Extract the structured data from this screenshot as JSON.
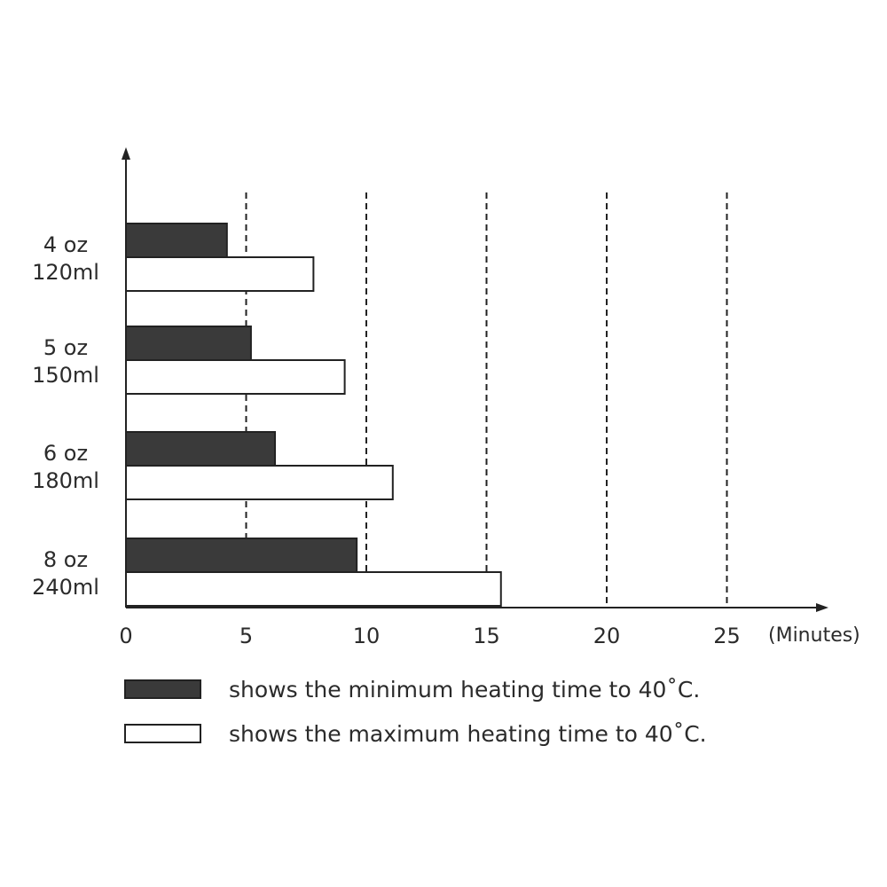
{
  "chart_data": {
    "type": "bar",
    "orientation": "horizontal",
    "categories": [
      [
        "4 oz",
        "120ml"
      ],
      [
        "5 oz",
        "150ml"
      ],
      [
        "6 oz",
        "180ml"
      ],
      [
        "8 oz",
        "240ml"
      ]
    ],
    "series": [
      {
        "name": "shows the minimum heating time to 40˚C.",
        "color": "#3a3a3a",
        "values": [
          4.2,
          5.2,
          6.2,
          9.6
        ]
      },
      {
        "name": "shows the maximum heating time to 40˚C.",
        "color": "#ffffff",
        "values": [
          7.8,
          9.1,
          11.1,
          15.6
        ]
      }
    ],
    "xticks": [
      0,
      5,
      10,
      15,
      20,
      25
    ],
    "xlim": [
      0,
      29
    ],
    "xunit": "(Minutes)",
    "grid": "dashed vertical lines at 5, 10, 15, 20, 25",
    "legend_position": "bottom"
  }
}
